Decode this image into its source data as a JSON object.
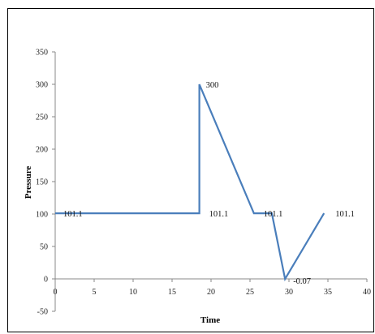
{
  "chart_data": {
    "type": "line",
    "title": "",
    "xlabel": "Time",
    "ylabel": "Pressure",
    "xlim": [
      0,
      40
    ],
    "ylim": [
      -50,
      350
    ],
    "x_ticks": [
      "0",
      "5",
      "10",
      "15",
      "20",
      "25",
      "30",
      "35",
      "40"
    ],
    "y_ticks": [
      "350",
      "300",
      "250",
      "200",
      "150",
      "100",
      "50",
      "0",
      "-50"
    ],
    "grid": false,
    "line_color": "#4a7ebb",
    "series": [
      {
        "x": [
          0,
          18.5,
          18.5,
          25.5,
          27.8,
          29.5,
          34.5
        ],
        "y": [
          101.1,
          101.1,
          300,
          101.1,
          101.1,
          -0.07,
          101.1
        ]
      }
    ],
    "data_labels": [
      "101.1",
      "300",
      "101.1",
      "101.1",
      "-0.07",
      "101.1"
    ]
  }
}
